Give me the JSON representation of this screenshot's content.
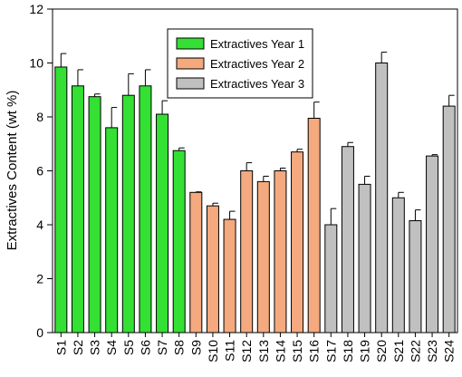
{
  "chart_data": {
    "type": "bar",
    "y_label": "Extractives Content (wt %)",
    "categories": [
      "S1",
      "S2",
      "S3",
      "S4",
      "S5",
      "S6",
      "S7",
      "S8",
      "S9",
      "S10",
      "S11",
      "S12",
      "S13",
      "S14",
      "S15",
      "S16",
      "S17",
      "S18",
      "S19",
      "S20",
      "S21",
      "S22",
      "S23",
      "S24"
    ],
    "series": [
      {
        "name": "Extractives Year 1",
        "color": "#33e033",
        "values": [
          9.85,
          9.15,
          8.75,
          7.6,
          8.8,
          9.15,
          8.1,
          6.75,
          null,
          null,
          null,
          null,
          null,
          null,
          null,
          null,
          null,
          null,
          null,
          null,
          null,
          null,
          null,
          null
        ],
        "errors": [
          0.5,
          0.6,
          0.1,
          0.75,
          0.8,
          0.6,
          0.5,
          0.1,
          null,
          null,
          null,
          null,
          null,
          null,
          null,
          null,
          null,
          null,
          null,
          null,
          null,
          null,
          null,
          null
        ]
      },
      {
        "name": "Extractives Year 2",
        "color": "#f4a97e",
        "values": [
          null,
          null,
          null,
          null,
          null,
          null,
          null,
          null,
          5.2,
          4.7,
          4.2,
          6.0,
          5.6,
          6.0,
          6.7,
          7.95,
          null,
          null,
          null,
          null,
          null,
          null,
          null,
          null
        ],
        "errors": [
          null,
          null,
          null,
          null,
          null,
          null,
          null,
          null,
          0.02,
          0.1,
          0.3,
          0.3,
          0.2,
          0.1,
          0.1,
          0.6,
          null,
          null,
          null,
          null,
          null,
          null,
          null,
          null
        ]
      },
      {
        "name": "Extractives Year 3",
        "color": "#c0c0c0",
        "values": [
          null,
          null,
          null,
          null,
          null,
          null,
          null,
          null,
          null,
          null,
          null,
          null,
          null,
          null,
          null,
          null,
          4.0,
          6.9,
          5.5,
          10.0,
          5.0,
          4.15,
          6.55,
          8.4
        ],
        "errors": [
          null,
          null,
          null,
          null,
          null,
          null,
          null,
          null,
          null,
          null,
          null,
          null,
          null,
          null,
          null,
          null,
          0.6,
          0.15,
          0.3,
          0.4,
          0.2,
          0.4,
          0.05,
          0.4
        ]
      }
    ],
    "ylim": [
      0,
      12
    ],
    "yticks": [
      0,
      2,
      4,
      6,
      8,
      10,
      12
    ]
  }
}
